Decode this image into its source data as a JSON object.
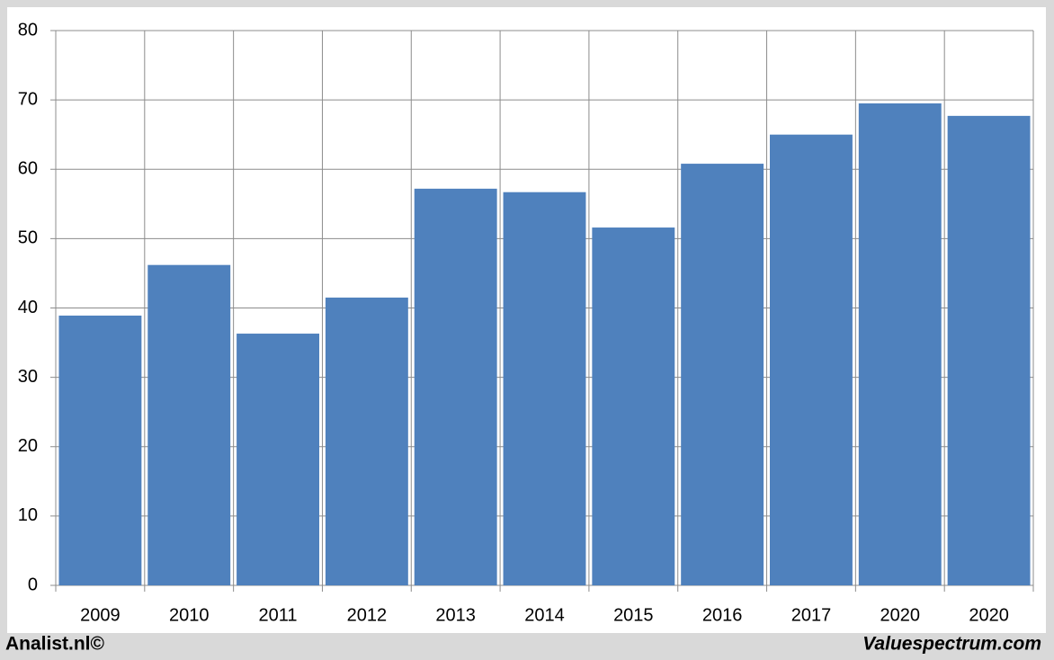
{
  "chart_data": {
    "type": "bar",
    "categories": [
      "2009",
      "2010",
      "2011",
      "2012",
      "2013",
      "2014",
      "2015",
      "2016",
      "2017",
      "2020",
      "2020"
    ],
    "values": [
      38.9,
      46.2,
      36.3,
      41.5,
      57.2,
      56.7,
      51.6,
      60.8,
      65.0,
      69.5,
      67.7
    ],
    "color": "#4f81bd",
    "ylim": [
      0,
      80
    ],
    "yticks": [
      0,
      10,
      20,
      30,
      40,
      50,
      60,
      70,
      80
    ],
    "grid": true
  },
  "footer": {
    "left": "Analist.nl©",
    "right": "Valuespectrum.com"
  }
}
